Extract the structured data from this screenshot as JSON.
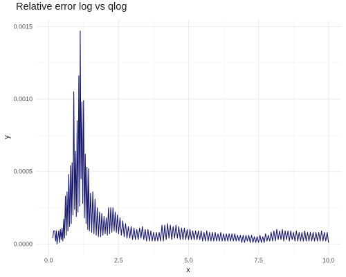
{
  "chart_data": {
    "type": "line",
    "title": "Relative error log vs qlog",
    "xlabel": "x",
    "ylabel": "y",
    "xlim": [
      -0.45,
      10.45
    ],
    "ylim": [
      -8e-05,
      0.00155
    ],
    "x_ticks": [
      0,
      2.5,
      5,
      7.5,
      10
    ],
    "x_tick_labels": [
      "0.0",
      "2.5",
      "5.0",
      "7.5",
      "10.0"
    ],
    "y_ticks": [
      0,
      0.0005,
      0.001,
      0.0015
    ],
    "y_tick_labels": [
      "0.0000",
      "0.0005",
      "0.0010",
      "0.0015"
    ],
    "grid": true,
    "line_color": "#191970",
    "series": [
      {
        "points": [
          [
            0.15,
            4e-05
          ],
          [
            0.18,
            9e-05
          ],
          [
            0.22,
            9e-05
          ],
          [
            0.25,
            2e-05
          ],
          [
            0.28,
            9e-05
          ],
          [
            0.3,
            0.0
          ],
          [
            0.33,
            4e-05
          ],
          [
            0.36,
            9e-05
          ],
          [
            0.39,
            1e-05
          ],
          [
            0.42,
            0.0001
          ],
          [
            0.45,
            3e-05
          ],
          [
            0.48,
            0.00011
          ],
          [
            0.51,
            2e-05
          ],
          [
            0.54,
            0.00017
          ],
          [
            0.57,
            4e-05
          ],
          [
            0.6,
            0.00033
          ],
          [
            0.63,
            6e-05
          ],
          [
            0.66,
            0.00036
          ],
          [
            0.69,
            9e-05
          ],
          [
            0.72,
            0.00048
          ],
          [
            0.75,
            0.00012
          ],
          [
            0.78,
            0.00054
          ],
          [
            0.81,
            0.00014
          ],
          [
            0.84,
            0.00056
          ],
          [
            0.87,
            0.0002
          ],
          [
            0.9,
            0.00105
          ],
          [
            0.93,
            0.00024
          ],
          [
            0.96,
            0.00064
          ],
          [
            0.99,
            0.00019
          ],
          [
            1.02,
            0.00085
          ],
          [
            1.05,
            0.00022
          ],
          [
            1.08,
            0.00116
          ],
          [
            1.11,
            0.00026
          ],
          [
            1.13,
            0.00147
          ],
          [
            1.16,
            0.00045
          ],
          [
            1.19,
            0.00098
          ],
          [
            1.22,
            0.00028
          ],
          [
            1.25,
            0.00099
          ],
          [
            1.28,
            0.00018
          ],
          [
            1.31,
            0.00062
          ],
          [
            1.34,
            0.00014
          ],
          [
            1.37,
            0.00053
          ],
          [
            1.4,
            0.0001
          ],
          [
            1.43,
            0.00052
          ],
          [
            1.46,
            9e-05
          ],
          [
            1.5,
            0.00035
          ],
          [
            1.54,
            8e-05
          ],
          [
            1.58,
            0.00036
          ],
          [
            1.62,
            7e-05
          ],
          [
            1.66,
            0.00031
          ],
          [
            1.7,
            6e-05
          ],
          [
            1.74,
            0.00025
          ],
          [
            1.78,
            5e-05
          ],
          [
            1.82,
            0.00022
          ],
          [
            1.86,
            5e-05
          ],
          [
            1.9,
            0.00021
          ],
          [
            1.94,
            6e-05
          ],
          [
            1.98,
            0.00019
          ],
          [
            2.02,
            7e-05
          ],
          [
            2.06,
            0.00018
          ],
          [
            2.1,
            6e-05
          ],
          [
            2.14,
            0.00025
          ],
          [
            2.18,
            7e-05
          ],
          [
            2.22,
            0.00025
          ],
          [
            2.26,
            8e-05
          ],
          [
            2.3,
            0.00025
          ],
          [
            2.34,
            9e-05
          ],
          [
            2.38,
            0.00022
          ],
          [
            2.42,
            8e-05
          ],
          [
            2.46,
            0.0002
          ],
          [
            2.5,
            7e-05
          ],
          [
            2.55,
            0.00018
          ],
          [
            2.6,
            6e-05
          ],
          [
            2.65,
            0.00016
          ],
          [
            2.7,
            5e-05
          ],
          [
            2.75,
            0.00014
          ],
          [
            2.8,
            4e-05
          ],
          [
            2.85,
            0.00012
          ],
          [
            2.9,
            4e-05
          ],
          [
            2.95,
            0.00012
          ],
          [
            3.0,
            3e-05
          ],
          [
            3.05,
            0.00011
          ],
          [
            3.1,
            3e-05
          ],
          [
            3.15,
            0.0001
          ],
          [
            3.2,
            3e-05
          ],
          [
            3.25,
            0.00011
          ],
          [
            3.3,
            4e-05
          ],
          [
            3.35,
            0.00012
          ],
          [
            3.4,
            3e-05
          ],
          [
            3.45,
            0.0001
          ],
          [
            3.5,
            2e-05
          ],
          [
            3.55,
            0.0001
          ],
          [
            3.6,
            2e-05
          ],
          [
            3.65,
            9e-05
          ],
          [
            3.7,
            2e-05
          ],
          [
            3.75,
            8e-05
          ],
          [
            3.8,
            2e-05
          ],
          [
            3.85,
            8e-05
          ],
          [
            3.9,
            2e-05
          ],
          [
            3.95,
            8e-05
          ],
          [
            4.0,
            2e-05
          ],
          [
            4.05,
            0.00013
          ],
          [
            4.1,
            2e-05
          ],
          [
            4.15,
            0.00013
          ],
          [
            4.2,
            3e-05
          ],
          [
            4.25,
            0.00014
          ],
          [
            4.3,
            4e-05
          ],
          [
            4.35,
            0.00013
          ],
          [
            4.4,
            3e-05
          ],
          [
            4.45,
            0.00012
          ],
          [
            4.5,
            4e-05
          ],
          [
            4.55,
            0.00013
          ],
          [
            4.6,
            4e-05
          ],
          [
            4.65,
            0.00012
          ],
          [
            4.7,
            3e-05
          ],
          [
            4.75,
            0.00011
          ],
          [
            4.8,
            3e-05
          ],
          [
            4.85,
            0.00011
          ],
          [
            4.9,
            3e-05
          ],
          [
            4.95,
            0.0001
          ],
          [
            5.0,
            3e-05
          ],
          [
            5.05,
            0.0001
          ],
          [
            5.1,
            3e-05
          ],
          [
            5.15,
            9e-05
          ],
          [
            5.2,
            3e-05
          ],
          [
            5.25,
            9e-05
          ],
          [
            5.3,
            3e-05
          ],
          [
            5.35,
            9e-05
          ],
          [
            5.4,
            3e-05
          ],
          [
            5.45,
            9e-05
          ],
          [
            5.5,
            2e-05
          ],
          [
            5.55,
            8e-05
          ],
          [
            5.6,
            2e-05
          ],
          [
            5.65,
            9e-05
          ],
          [
            5.7,
            2e-05
          ],
          [
            5.75,
            8e-05
          ],
          [
            5.8,
            2e-05
          ],
          [
            5.85,
            8e-05
          ],
          [
            5.9,
            2e-05
          ],
          [
            5.95,
            8e-05
          ],
          [
            6.0,
            2e-05
          ],
          [
            6.05,
            7e-05
          ],
          [
            6.1,
            2e-05
          ],
          [
            6.15,
            8e-05
          ],
          [
            6.2,
            2e-05
          ],
          [
            6.25,
            7e-05
          ],
          [
            6.3,
            2e-05
          ],
          [
            6.35,
            7e-05
          ],
          [
            6.4,
            2e-05
          ],
          [
            6.45,
            7e-05
          ],
          [
            6.5,
            2e-05
          ],
          [
            6.55,
            7e-05
          ],
          [
            6.6,
            2e-05
          ],
          [
            6.65,
            7e-05
          ],
          [
            6.7,
            2e-05
          ],
          [
            6.75,
            6e-05
          ],
          [
            6.8,
            2e-05
          ],
          [
            6.85,
            6e-05
          ],
          [
            6.9,
            1e-05
          ],
          [
            6.95,
            6e-05
          ],
          [
            7.0,
            1e-05
          ],
          [
            7.05,
            6e-05
          ],
          [
            7.1,
            2e-05
          ],
          [
            7.15,
            6e-05
          ],
          [
            7.2,
            1e-05
          ],
          [
            7.25,
            6e-05
          ],
          [
            7.3,
            1e-05
          ],
          [
            7.35,
            5e-05
          ],
          [
            7.4,
            1e-05
          ],
          [
            7.45,
            5e-05
          ],
          [
            7.5,
            1e-05
          ],
          [
            7.55,
            6e-05
          ],
          [
            7.6,
            1e-05
          ],
          [
            7.65,
            5e-05
          ],
          [
            7.7,
            1e-05
          ],
          [
            7.75,
            7e-05
          ],
          [
            7.8,
            2e-05
          ],
          [
            7.85,
            6e-05
          ],
          [
            7.9,
            2e-05
          ],
          [
            7.95,
            8e-05
          ],
          [
            8.0,
            2e-05
          ],
          [
            8.05,
            9e-05
          ],
          [
            8.1,
            2e-05
          ],
          [
            8.15,
            0.0001
          ],
          [
            8.2,
            3e-05
          ],
          [
            8.25,
            9e-05
          ],
          [
            8.3,
            3e-05
          ],
          [
            8.35,
            0.0001
          ],
          [
            8.4,
            2e-05
          ],
          [
            8.45,
            9e-05
          ],
          [
            8.5,
            3e-05
          ],
          [
            8.55,
            9e-05
          ],
          [
            8.6,
            2e-05
          ],
          [
            8.65,
            9e-05
          ],
          [
            8.7,
            3e-05
          ],
          [
            8.75,
            8e-05
          ],
          [
            8.8,
            2e-05
          ],
          [
            8.85,
            9e-05
          ],
          [
            8.9,
            2e-05
          ],
          [
            8.95,
            8e-05
          ],
          [
            9.0,
            2e-05
          ],
          [
            9.05,
            8e-05
          ],
          [
            9.1,
            2e-05
          ],
          [
            9.15,
            9e-05
          ],
          [
            9.2,
            2e-05
          ],
          [
            9.25,
            8e-05
          ],
          [
            9.3,
            2e-05
          ],
          [
            9.35,
            8e-05
          ],
          [
            9.4,
            2e-05
          ],
          [
            9.45,
            8e-05
          ],
          [
            9.5,
            2e-05
          ],
          [
            9.55,
            8e-05
          ],
          [
            9.6,
            2e-05
          ],
          [
            9.65,
            8e-05
          ],
          [
            9.7,
            2e-05
          ],
          [
            9.75,
            9e-05
          ],
          [
            9.8,
            2e-05
          ],
          [
            9.85,
            8e-05
          ],
          [
            9.9,
            2e-05
          ],
          [
            9.95,
            8e-05
          ],
          [
            10.0,
            1e-05
          ]
        ]
      }
    ]
  }
}
